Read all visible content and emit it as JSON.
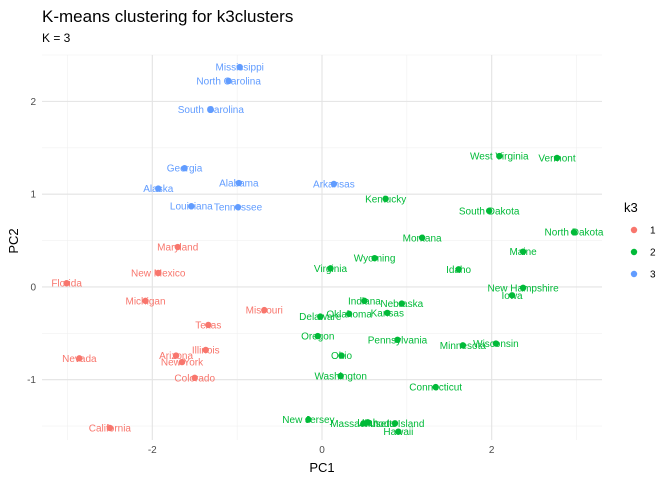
{
  "chart_data": {
    "type": "scatter",
    "title": "K-means clustering for k3clusters",
    "subtitle": "K = 3",
    "xlabel": "PC1",
    "ylabel": "PC2",
    "xlim": [
      -3.3,
      3.3
    ],
    "ylim": [
      -1.65,
      2.5
    ],
    "x_ticks": [
      -2,
      0,
      2
    ],
    "y_ticks": [
      -1,
      0,
      1,
      2
    ],
    "grid": true,
    "legend": {
      "title": "k3",
      "position": "right",
      "entries": [
        {
          "label": "1",
          "color": "#F8766D"
        },
        {
          "label": "2",
          "color": "#00BA38"
        },
        {
          "label": "3",
          "color": "#619CFF"
        }
      ]
    },
    "series": [
      {
        "cluster": "1",
        "color": "#F8766D",
        "points": [
          {
            "label": "Florida",
            "x": -3.01,
            "y": 0.04
          },
          {
            "label": "Maryland",
            "x": -1.7,
            "y": 0.43
          },
          {
            "label": "New Mexico",
            "x": -1.93,
            "y": 0.15
          },
          {
            "label": "Michigan",
            "x": -2.08,
            "y": -0.15
          },
          {
            "label": "Missouri",
            "x": -0.68,
            "y": -0.25
          },
          {
            "label": "Texas",
            "x": -1.34,
            "y": -0.41
          },
          {
            "label": "Illinois",
            "x": -1.37,
            "y": -0.68
          },
          {
            "label": "Arizona",
            "x": -1.72,
            "y": -0.74
          },
          {
            "label": "Nevada",
            "x": -2.86,
            "y": -0.77
          },
          {
            "label": "New York",
            "x": -1.65,
            "y": -0.81
          },
          {
            "label": "Colorado",
            "x": -1.5,
            "y": -0.98
          },
          {
            "label": "California",
            "x": -2.5,
            "y": -1.52
          }
        ]
      },
      {
        "cluster": "2",
        "color": "#00BA38",
        "points": [
          {
            "label": "West Virginia",
            "x": 2.09,
            "y": 1.41
          },
          {
            "label": "Vermont",
            "x": 2.77,
            "y": 1.39
          },
          {
            "label": "Kentucky",
            "x": 0.75,
            "y": 0.95
          },
          {
            "label": "South Dakota",
            "x": 1.97,
            "y": 0.82
          },
          {
            "label": "North Dakota",
            "x": 2.97,
            "y": 0.59
          },
          {
            "label": "Montana",
            "x": 1.18,
            "y": 0.53
          },
          {
            "label": "Maine",
            "x": 2.37,
            "y": 0.38
          },
          {
            "label": "Wyoming",
            "x": 0.62,
            "y": 0.31
          },
          {
            "label": "Virginia",
            "x": 0.1,
            "y": 0.2
          },
          {
            "label": "Idaho",
            "x": 1.61,
            "y": 0.19
          },
          {
            "label": "New Hampshire",
            "x": 2.37,
            "y": -0.01
          },
          {
            "label": "Iowa",
            "x": 2.24,
            "y": -0.09
          },
          {
            "label": "Indiana",
            "x": 0.5,
            "y": -0.15
          },
          {
            "label": "Nebraska",
            "x": 0.94,
            "y": -0.18
          },
          {
            "label": "Delaware",
            "x": -0.02,
            "y": -0.32
          },
          {
            "label": "Oklahoma",
            "x": 0.32,
            "y": -0.29
          },
          {
            "label": "Kansas",
            "x": 0.77,
            "y": -0.28
          },
          {
            "label": "Oregon",
            "x": -0.05,
            "y": -0.53
          },
          {
            "label": "Pennsylvania",
            "x": 0.89,
            "y": -0.57
          },
          {
            "label": "Minnesota",
            "x": 1.66,
            "y": -0.63
          },
          {
            "label": "Wisconsin",
            "x": 2.05,
            "y": -0.61
          },
          {
            "label": "Ohio",
            "x": 0.23,
            "y": -0.74
          },
          {
            "label": "Washington",
            "x": 0.22,
            "y": -0.96
          },
          {
            "label": "Connecticut",
            "x": 1.34,
            "y": -1.08
          },
          {
            "label": "New Jersey",
            "x": -0.16,
            "y": -1.43
          },
          {
            "label": "Massachusetts",
            "x": 0.49,
            "y": -1.47
          },
          {
            "label": "Utah",
            "x": 0.54,
            "y": -1.46
          },
          {
            "label": "Rhode Island",
            "x": 0.86,
            "y": -1.47
          },
          {
            "label": "Hawaii",
            "x": 0.9,
            "y": -1.56
          }
        ]
      },
      {
        "cluster": "3",
        "color": "#619CFF",
        "points": [
          {
            "label": "Mississippi",
            "x": -0.97,
            "y": 2.37
          },
          {
            "label": "North Carolina",
            "x": -1.1,
            "y": 2.22
          },
          {
            "label": "South Carolina",
            "x": -1.31,
            "y": 1.91
          },
          {
            "label": "Georgia",
            "x": -1.62,
            "y": 1.28
          },
          {
            "label": "Alaska",
            "x": -1.93,
            "y": 1.06
          },
          {
            "label": "Alabama",
            "x": -0.98,
            "y": 1.12
          },
          {
            "label": "Arkansas",
            "x": 0.14,
            "y": 1.11
          },
          {
            "label": "Louisiana",
            "x": -1.54,
            "y": 0.87
          },
          {
            "label": "Tennessee",
            "x": -0.99,
            "y": 0.86
          }
        ]
      }
    ]
  }
}
